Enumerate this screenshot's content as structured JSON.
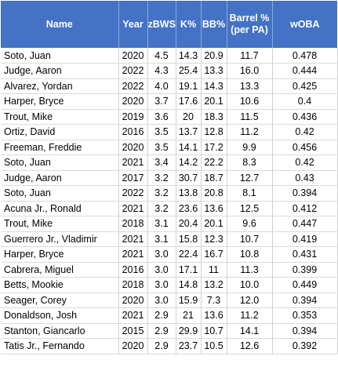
{
  "table": {
    "headers": {
      "name": "Name",
      "year": "Year",
      "zbws": "zBWS",
      "k_pct": "K%",
      "bb_pct": "BB%",
      "barrel_line1": "Barrel %",
      "barrel_line2": "(per PA)",
      "woba": "wOBA"
    },
    "colors": {
      "header_bg": "#4472c4",
      "header_text": "#ffffff"
    },
    "rows": [
      {
        "name": "Soto, Juan",
        "year": "2020",
        "zbws": "4.5",
        "k": "14.3",
        "bb": "20.9",
        "barrel": "11.7",
        "woba": "0.478"
      },
      {
        "name": "Judge, Aaron",
        "year": "2022",
        "zbws": "4.3",
        "k": "25.4",
        "bb": "13.3",
        "barrel": "16.0",
        "woba": "0.444"
      },
      {
        "name": "Alvarez, Yordan",
        "year": "2022",
        "zbws": "4.0",
        "k": "19.1",
        "bb": "14.3",
        "barrel": "13.3",
        "woba": "0.425"
      },
      {
        "name": "Harper, Bryce",
        "year": "2020",
        "zbws": "3.7",
        "k": "17.6",
        "bb": "20.1",
        "barrel": "10.6",
        "woba": "0.4"
      },
      {
        "name": "Trout, Mike",
        "year": "2019",
        "zbws": "3.6",
        "k": "20",
        "bb": "18.3",
        "barrel": "11.5",
        "woba": "0.436"
      },
      {
        "name": "Ortiz, David",
        "year": "2016",
        "zbws": "3.5",
        "k": "13.7",
        "bb": "12.8",
        "barrel": "11.2",
        "woba": "0.42"
      },
      {
        "name": "Freeman, Freddie",
        "year": "2020",
        "zbws": "3.5",
        "k": "14.1",
        "bb": "17.2",
        "barrel": "9.9",
        "woba": "0.456"
      },
      {
        "name": "Soto, Juan",
        "year": "2021",
        "zbws": "3.4",
        "k": "14.2",
        "bb": "22.2",
        "barrel": "8.3",
        "woba": "0.42"
      },
      {
        "name": "Judge, Aaron",
        "year": "2017",
        "zbws": "3.2",
        "k": "30.7",
        "bb": "18.7",
        "barrel": "12.7",
        "woba": "0.43"
      },
      {
        "name": "Soto, Juan",
        "year": "2022",
        "zbws": "3.2",
        "k": "13.8",
        "bb": "20.8",
        "barrel": "8.1",
        "woba": "0.394"
      },
      {
        "name": "Acuna Jr., Ronald",
        "year": "2021",
        "zbws": "3.2",
        "k": "23.6",
        "bb": "13.6",
        "barrel": "12.5",
        "woba": "0.412"
      },
      {
        "name": "Trout, Mike",
        "year": "2018",
        "zbws": "3.1",
        "k": "20.4",
        "bb": "20.1",
        "barrel": "9.6",
        "woba": "0.447"
      },
      {
        "name": "Guerrero Jr., Vladimir",
        "year": "2021",
        "zbws": "3.1",
        "k": "15.8",
        "bb": "12.3",
        "barrel": "10.7",
        "woba": "0.419"
      },
      {
        "name": "Harper, Bryce",
        "year": "2021",
        "zbws": "3.0",
        "k": "22.4",
        "bb": "16.7",
        "barrel": "10.8",
        "woba": "0.431"
      },
      {
        "name": "Cabrera, Miguel",
        "year": "2016",
        "zbws": "3.0",
        "k": "17.1",
        "bb": "11",
        "barrel": "11.3",
        "woba": "0.399"
      },
      {
        "name": "Betts, Mookie",
        "year": "2018",
        "zbws": "3.0",
        "k": "14.8",
        "bb": "13.2",
        "barrel": "10.0",
        "woba": "0.449"
      },
      {
        "name": "Seager, Corey",
        "year": "2020",
        "zbws": "3.0",
        "k": "15.9",
        "bb": "7.3",
        "barrel": "12.0",
        "woba": "0.394"
      },
      {
        "name": "Donaldson, Josh",
        "year": "2021",
        "zbws": "2.9",
        "k": "21",
        "bb": "13.6",
        "barrel": "11.2",
        "woba": "0.353"
      },
      {
        "name": "Stanton, Giancarlo",
        "year": "2015",
        "zbws": "2.9",
        "k": "29.9",
        "bb": "10.7",
        "barrel": "14.1",
        "woba": "0.394"
      },
      {
        "name": "Tatis Jr., Fernando",
        "year": "2020",
        "zbws": "2.9",
        "k": "23.7",
        "bb": "10.5",
        "barrel": "12.6",
        "woba": "0.392"
      }
    ]
  }
}
